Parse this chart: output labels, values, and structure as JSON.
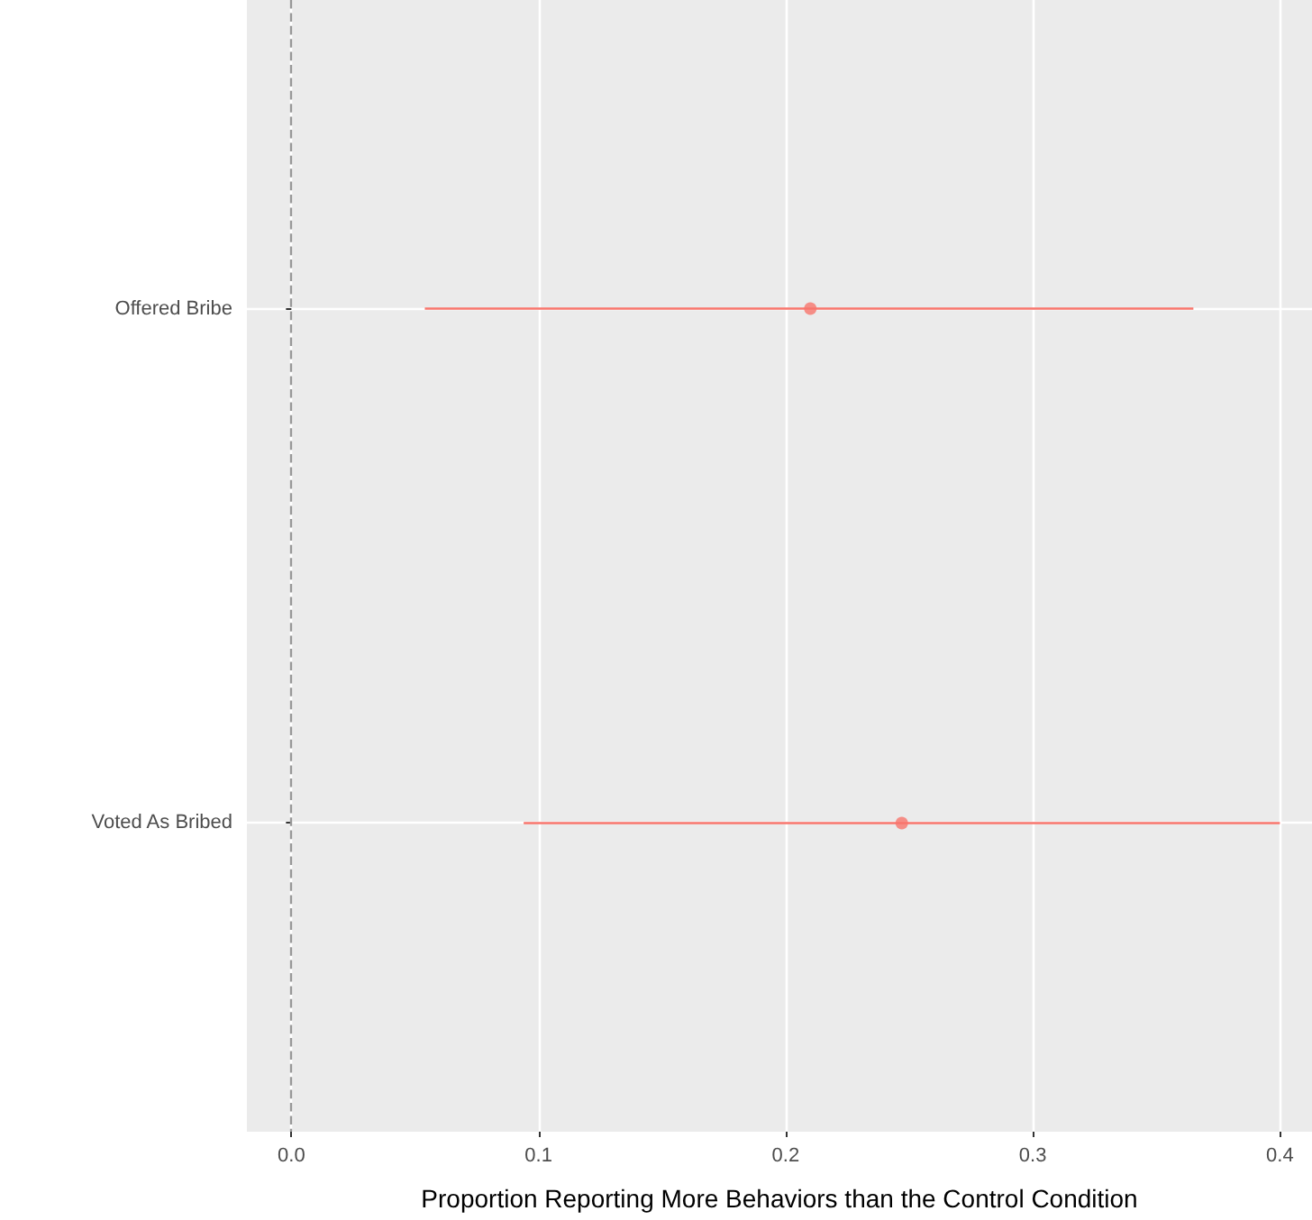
{
  "chart_data": {
    "type": "scatter",
    "orientation": "horizontal",
    "xlabel": "Proportion Reporting More Behaviors than the Control Condition",
    "categories": [
      "Offered Bribe",
      "Voted As Bribed"
    ],
    "series": [
      {
        "color": "#f8766d",
        "values": [
          0.21,
          0.247
        ],
        "errors": [
          [
            0.054,
            0.365
          ],
          [
            0.094,
            0.4
          ]
        ]
      }
    ],
    "xlim": [
      -0.018,
      0.413
    ],
    "xticks": [
      {
        "value": 0,
        "label": "0.0"
      },
      0.1,
      0.2,
      0.3,
      0.4
    ],
    "ref_lines": [
      {
        "axis": "x",
        "value": 0,
        "color": "#999999",
        "line_style": "dashed"
      }
    ],
    "grid": true,
    "marker": "circle"
  }
}
